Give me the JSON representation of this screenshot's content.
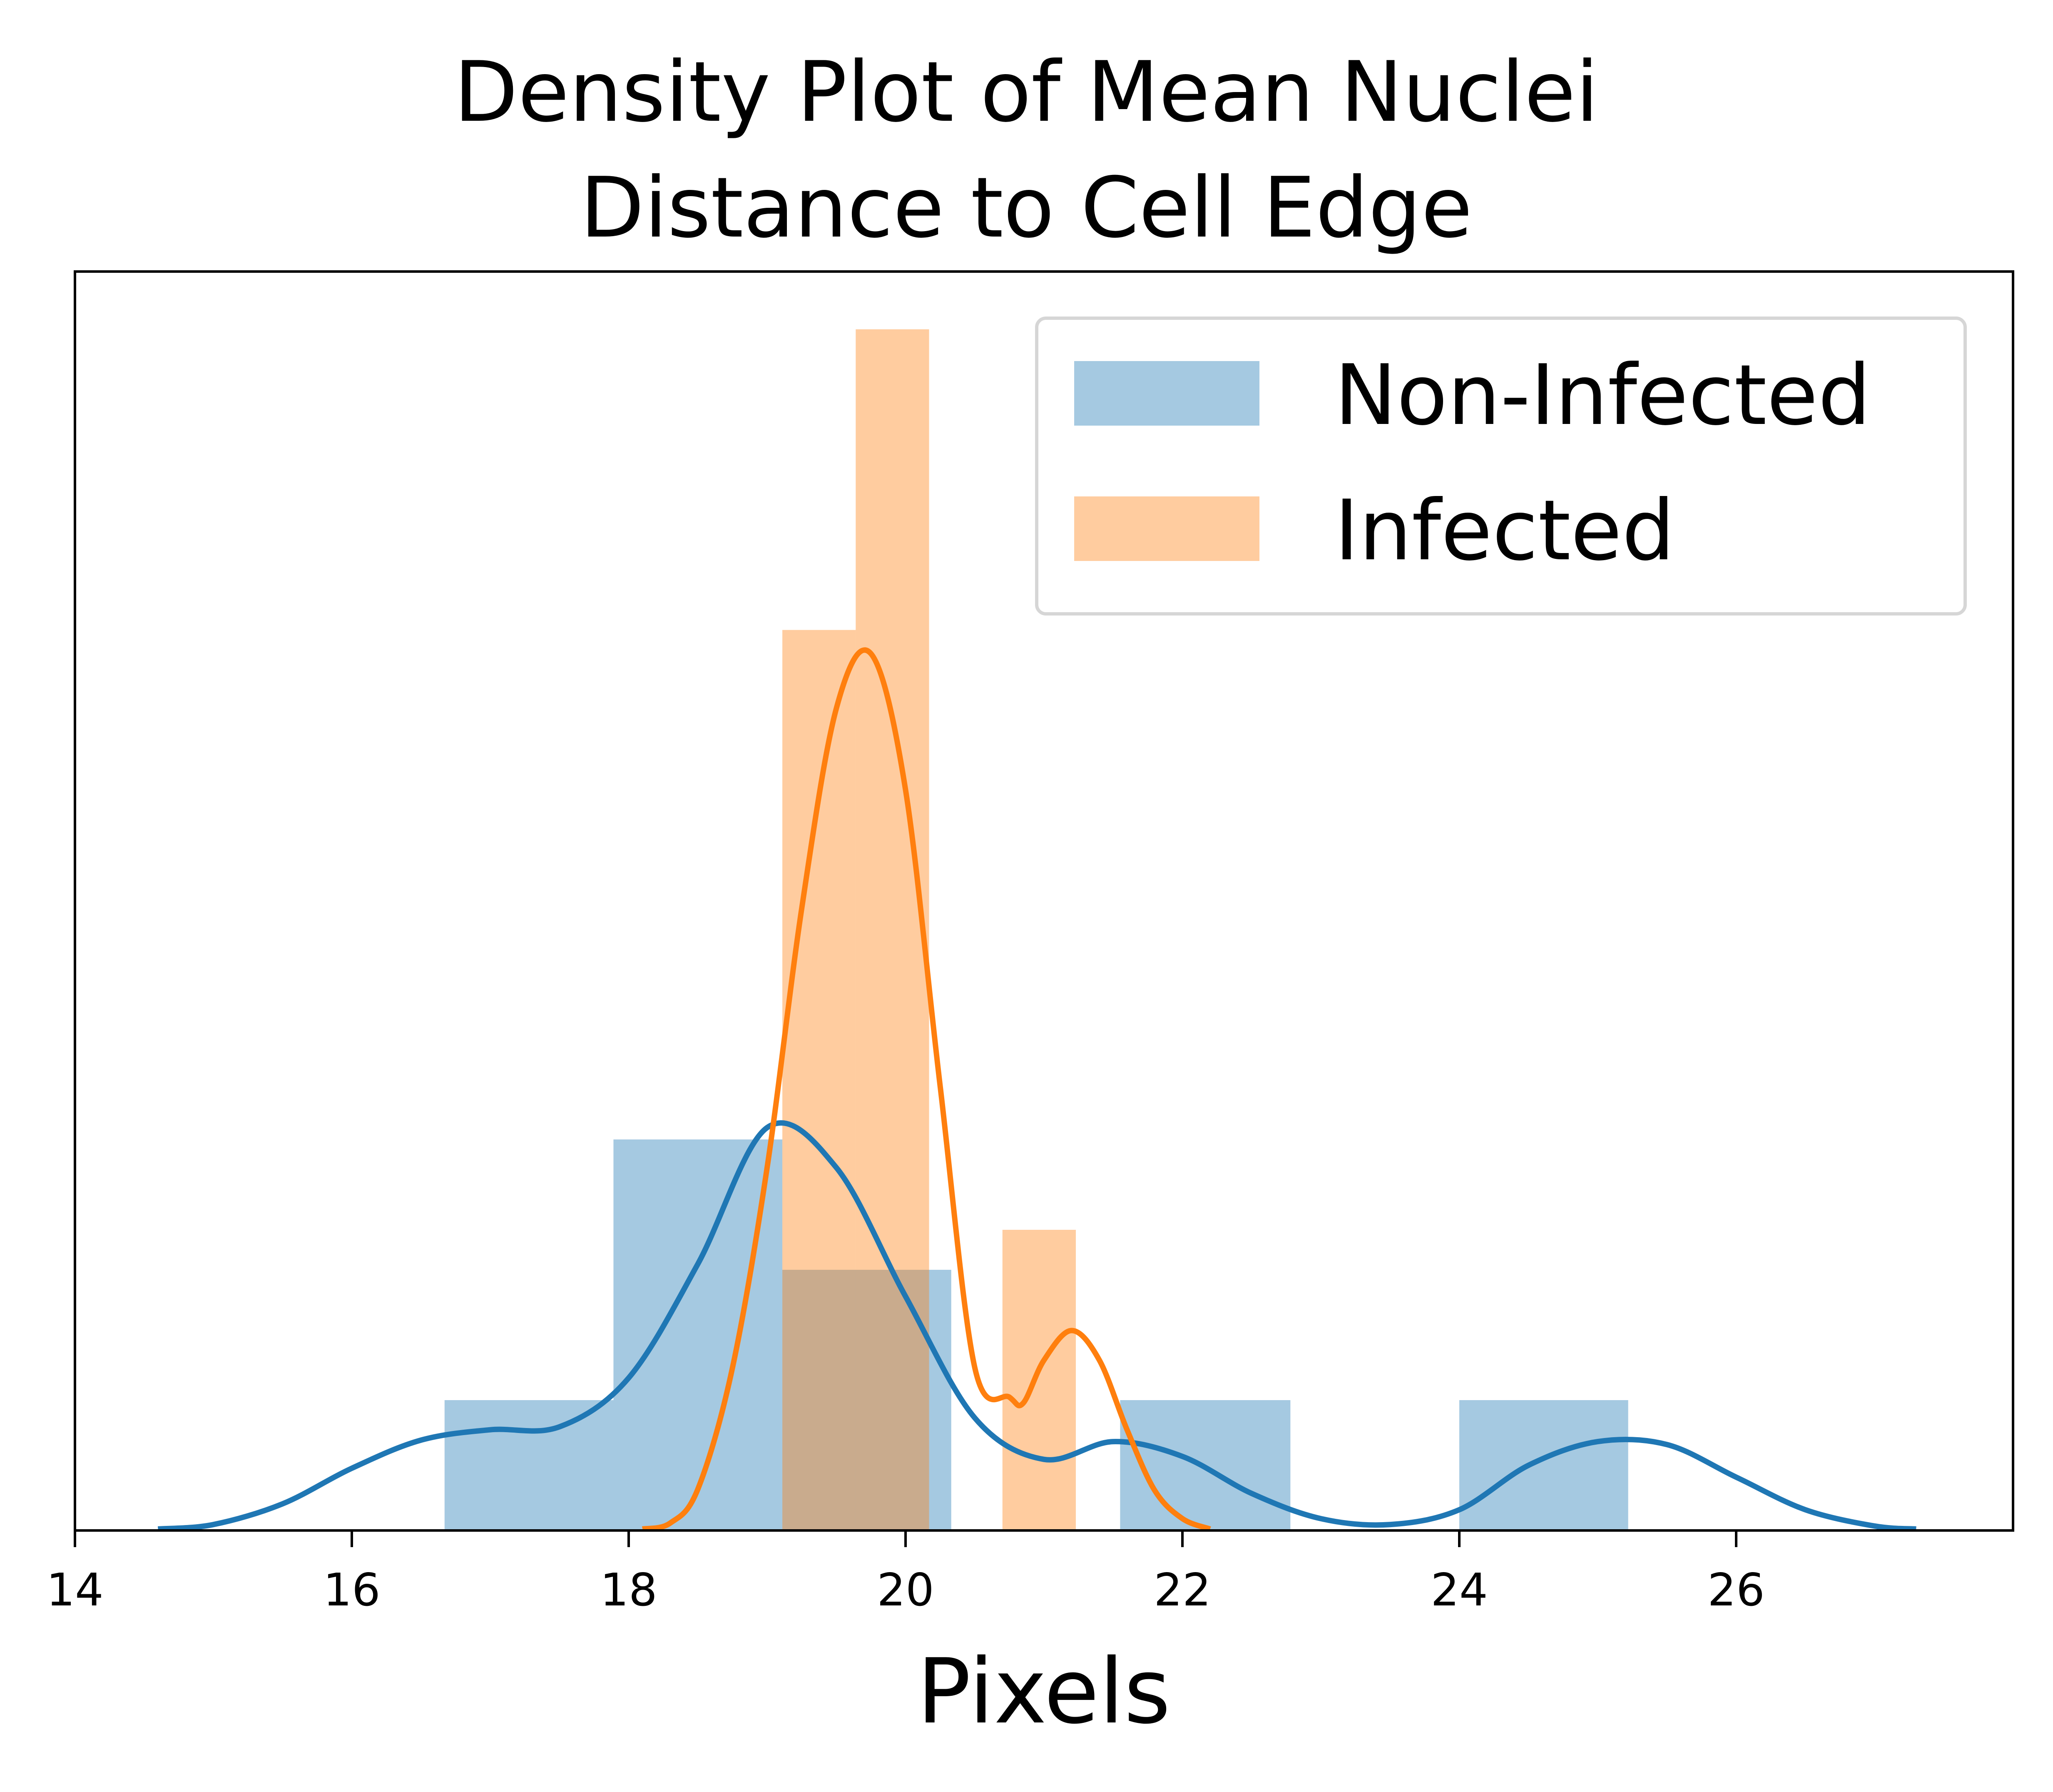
{
  "chart_data": {
    "type": "histogram-with-density",
    "title": [
      "Density Plot of Mean Nuclei",
      "Distance to Cell Edge"
    ],
    "xlabel": "Pixels",
    "ylabel": "",
    "xlim": [
      14,
      28
    ],
    "ylim": [
      0,
      0.85
    ],
    "xticks": [
      14,
      16,
      18,
      20,
      22,
      24,
      26
    ],
    "x_tick_labels": [
      "14",
      "16",
      "18",
      "20",
      "22",
      "24",
      "26"
    ],
    "y_ticks_shown": false,
    "grid": false,
    "legend": {
      "placement": "upper right",
      "entries": [
        "Non-Infected",
        "Infected"
      ]
    },
    "series": [
      {
        "name": "Non-Infected",
        "color": "#1f77b4",
        "bar_opacity": 0.4,
        "histogram": [
          {
            "x0": 16.67,
            "x1": 17.89,
            "density": 0.088
          },
          {
            "x0": 17.89,
            "x1": 19.11,
            "density": 0.264
          },
          {
            "x0": 19.11,
            "x1": 20.33,
            "density": 0.176
          },
          {
            "x0": 20.33,
            "x1": 21.55,
            "density": 0.0
          },
          {
            "x0": 21.55,
            "x1": 22.78,
            "density": 0.088
          },
          {
            "x0": 22.78,
            "x1": 24.0,
            "density": 0.0
          },
          {
            "x0": 24.0,
            "x1": 25.22,
            "density": 0.088
          }
        ],
        "kde": [
          [
            14.6,
            0.001
          ],
          [
            15.0,
            0.004
          ],
          [
            15.5,
            0.018
          ],
          [
            16.0,
            0.042
          ],
          [
            16.5,
            0.061
          ],
          [
            17.0,
            0.068
          ],
          [
            17.5,
            0.07
          ],
          [
            18.0,
            0.103
          ],
          [
            18.5,
            0.18
          ],
          [
            19.0,
            0.272
          ],
          [
            19.5,
            0.245
          ],
          [
            20.0,
            0.158
          ],
          [
            20.5,
            0.076
          ],
          [
            21.0,
            0.048
          ],
          [
            21.5,
            0.06
          ],
          [
            22.0,
            0.05
          ],
          [
            22.5,
            0.025
          ],
          [
            23.0,
            0.008
          ],
          [
            23.5,
            0.004
          ],
          [
            24.0,
            0.014
          ],
          [
            24.5,
            0.044
          ],
          [
            25.0,
            0.06
          ],
          [
            25.5,
            0.058
          ],
          [
            26.0,
            0.036
          ],
          [
            26.5,
            0.014
          ],
          [
            27.0,
            0.003
          ],
          [
            27.3,
            0.001
          ]
        ]
      },
      {
        "name": "Infected",
        "color": "#ff7f0e",
        "bar_opacity": 0.4,
        "histogram": [
          {
            "x0": 19.11,
            "x1": 19.64,
            "density": 0.608
          },
          {
            "x0": 19.64,
            "x1": 20.17,
            "density": 0.811
          },
          {
            "x0": 20.17,
            "x1": 20.7,
            "density": 0.0
          },
          {
            "x0": 20.7,
            "x1": 21.23,
            "density": 0.203
          }
        ],
        "kde": [
          [
            18.1,
            0.001
          ],
          [
            18.3,
            0.005
          ],
          [
            18.5,
            0.028
          ],
          [
            18.75,
            0.11
          ],
          [
            19.0,
            0.245
          ],
          [
            19.25,
            0.42
          ],
          [
            19.5,
            0.555
          ],
          [
            19.75,
            0.592
          ],
          [
            20.0,
            0.5
          ],
          [
            20.25,
            0.3
          ],
          [
            20.5,
            0.11
          ],
          [
            20.75,
            0.09
          ],
          [
            20.85,
            0.086
          ],
          [
            21.0,
            0.115
          ],
          [
            21.2,
            0.135
          ],
          [
            21.4,
            0.115
          ],
          [
            21.6,
            0.068
          ],
          [
            21.8,
            0.027
          ],
          [
            22.0,
            0.008
          ],
          [
            22.2,
            0.001
          ]
        ]
      }
    ]
  }
}
